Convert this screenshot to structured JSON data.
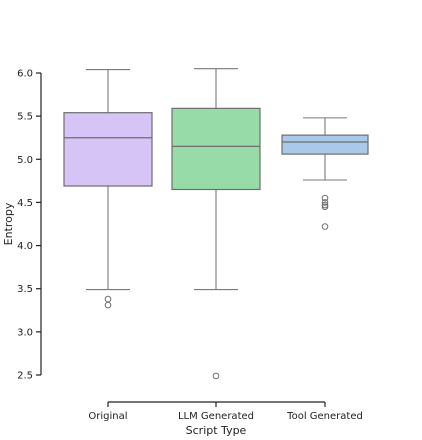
{
  "chart_data": {
    "type": "box",
    "xlabel": "Script Type",
    "ylabel": "Entropy",
    "ylim": [
      2.45,
      6.1
    ],
    "yticks": [
      "2.5",
      "3.0",
      "3.5",
      "4.0",
      "4.5",
      "5.0",
      "5.5",
      "6.0"
    ],
    "grid": false,
    "series": [
      {
        "category": "Original",
        "color": "#d5c4f5",
        "edge": "#6e6e6e",
        "whisker_low": 3.49,
        "q1": 4.69,
        "median": 5.25,
        "q3": 5.54,
        "whisker_high": 6.04,
        "outliers": [
          3.38,
          3.31
        ]
      },
      {
        "category": "LLM Generated",
        "color": "#97dca8",
        "edge": "#6e6e6e",
        "whisker_low": 3.49,
        "q1": 4.65,
        "median": 5.15,
        "q3": 5.59,
        "whisker_high": 6.05,
        "outliers": [
          2.49
        ]
      },
      {
        "category": "Tool Generated",
        "color": "#a9c8ea",
        "edge": "#6e6e6e",
        "whisker_low": 4.76,
        "q1": 5.06,
        "median": 5.2,
        "q3": 5.28,
        "whisker_high": 5.48,
        "outliers": [
          4.55,
          4.5,
          4.47,
          4.45,
          4.22
        ]
      }
    ]
  }
}
